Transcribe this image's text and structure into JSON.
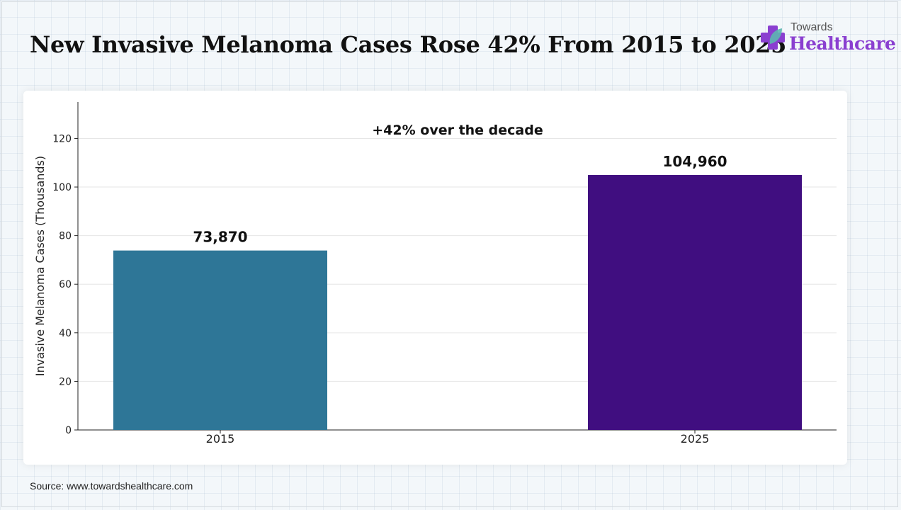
{
  "title": "New Invasive Melanoma Cases Rose 42% From 2015 to 2025",
  "logo": {
    "top_text": "Towards",
    "main_text": "Healthcare"
  },
  "source": "Source: www.towardshealthcare.com",
  "colors": {
    "bar_2015": "#2e7697",
    "bar_2025": "#400e80",
    "brand": "#8a3fd0"
  },
  "chart_data": {
    "type": "bar",
    "categories": [
      "2015",
      "2025"
    ],
    "values": [
      73.87,
      104.96
    ],
    "data_labels": [
      "73,870",
      "104,960"
    ],
    "ylabel": "Invasive Melanoma Cases (Thousands)",
    "xlabel": "",
    "ylim": [
      0,
      135
    ],
    "yticks": [
      0,
      20,
      40,
      60,
      80,
      100,
      120
    ],
    "annotation": "+42% over the decade",
    "grid": true
  }
}
